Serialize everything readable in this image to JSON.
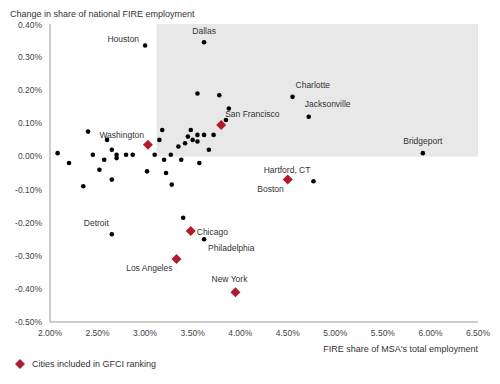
{
  "chart_data": {
    "type": "scatter",
    "y_label": "Change in share of national FIRE employment",
    "x_label": "FIRE share of MSA's total employment",
    "xlim": [
      2.0,
      6.5
    ],
    "ylim": [
      -0.5,
      0.4
    ],
    "xticks": [
      {
        "value": 2.0,
        "label": "2.00%"
      },
      {
        "value": 2.5,
        "label": "2.50%"
      },
      {
        "value": 3.0,
        "label": "3.00%"
      },
      {
        "value": 3.5,
        "label": "3.50%"
      },
      {
        "value": 4.0,
        "label": "4.00%"
      },
      {
        "value": 4.5,
        "label": "4.50%"
      },
      {
        "value": 5.0,
        "label": "5.00%"
      },
      {
        "value": 5.5,
        "label": "5.50%"
      },
      {
        "value": 6.0,
        "label": "6.00%"
      },
      {
        "value": 6.5,
        "label": "6.50%"
      }
    ],
    "yticks": [
      {
        "value": -0.5,
        "label": "-0.50%"
      },
      {
        "value": -0.4,
        "label": "-0.40%"
      },
      {
        "value": -0.3,
        "label": "-0.30%"
      },
      {
        "value": -0.2,
        "label": "-0.20%"
      },
      {
        "value": -0.1,
        "label": "-0.10%"
      },
      {
        "value": 0.0,
        "label": "0.00%"
      },
      {
        "value": 0.1,
        "label": "0.10%"
      },
      {
        "value": 0.2,
        "label": "0.20%"
      },
      {
        "value": 0.3,
        "label": "0.30%"
      },
      {
        "value": 0.4,
        "label": "0.40%"
      }
    ],
    "grid": false,
    "legend": "bottom-left",
    "shaded_region": {
      "x": [
        3.12,
        6.5
      ],
      "y": [
        0.0,
        0.4
      ],
      "color": "#e8e8e8"
    },
    "series": [
      {
        "color": "#000000",
        "marker": "circle",
        "labels": [
          "Houston",
          "Dallas",
          "Charlotte",
          "Jacksonville",
          "Bridgeport",
          "Hartford, CT",
          "Philadelphia",
          "Detroit",
          null,
          null,
          null,
          null,
          null,
          null,
          null,
          null,
          null,
          null,
          null,
          null,
          null,
          null,
          null,
          null,
          null,
          null,
          null,
          null,
          null,
          null,
          null,
          null,
          null,
          null,
          null,
          null,
          null,
          null,
          null,
          null,
          null,
          null,
          null,
          null,
          null,
          null,
          null
        ],
        "x": [
          3.0,
          3.62,
          4.55,
          4.72,
          5.92,
          4.77,
          3.62,
          2.65,
          2.08,
          2.2,
          2.35,
          2.4,
          2.45,
          2.52,
          2.57,
          2.6,
          2.65,
          2.65,
          2.7,
          2.7,
          2.8,
          2.87,
          3.02,
          3.1,
          3.15,
          3.18,
          3.2,
          3.22,
          3.27,
          3.28,
          3.35,
          3.38,
          3.42,
          3.45,
          3.48,
          3.5,
          3.55,
          3.55,
          3.57,
          3.62,
          3.67,
          3.72,
          3.78,
          3.85,
          3.88,
          3.4,
          3.55
        ],
        "y": [
          0.335,
          0.345,
          0.18,
          0.12,
          0.01,
          -0.075,
          -0.25,
          -0.235,
          0.01,
          -0.02,
          -0.09,
          0.075,
          0.005,
          -0.04,
          -0.01,
          0.05,
          0.02,
          -0.07,
          0.005,
          -0.005,
          0.005,
          0.005,
          -0.045,
          0.005,
          0.05,
          0.08,
          -0.01,
          -0.05,
          0.005,
          -0.085,
          0.03,
          -0.01,
          0.04,
          0.06,
          0.08,
          0.05,
          0.19,
          0.065,
          -0.02,
          0.065,
          0.02,
          0.065,
          0.185,
          0.11,
          0.145,
          -0.185,
          0.045
        ]
      },
      {
        "name": "Cities included in GFCI ranking",
        "color": "#b01c2e",
        "marker": "diamond",
        "labels": [
          "San Francisco",
          "Washington",
          "Boston",
          "Chicago",
          "Los Angeles",
          "New York"
        ],
        "x": [
          3.8,
          3.03,
          4.5,
          3.48,
          3.33,
          3.95
        ],
        "y": [
          0.095,
          0.035,
          -0.07,
          -0.225,
          -0.31,
          -0.41
        ]
      }
    ]
  }
}
